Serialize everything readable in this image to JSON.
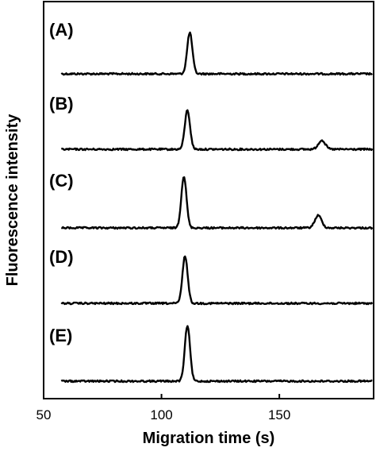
{
  "chart_data": {
    "type": "line",
    "xlabel": "Migration time (s)",
    "ylabel": "Fluorescence intensity",
    "xlim": [
      50,
      190
    ],
    "xticks": [
      50,
      100,
      150
    ],
    "grid": false,
    "panels": [
      {
        "label": "(A)",
        "peaks": [
          {
            "x": 112,
            "height": 1.0
          }
        ]
      },
      {
        "label": "(B)",
        "peaks": [
          {
            "x": 111,
            "height": 0.95
          },
          {
            "x": 168,
            "height": 0.22
          }
        ]
      },
      {
        "label": "(C)",
        "peaks": [
          {
            "x": 109.5,
            "height": 1.25
          },
          {
            "x": 166.5,
            "height": 0.3
          }
        ]
      },
      {
        "label": "(D)",
        "peaks": [
          {
            "x": 110,
            "height": 1.15
          }
        ]
      },
      {
        "label": "(E)",
        "peaks": [
          {
            "x": 111,
            "height": 1.35
          }
        ]
      }
    ]
  }
}
